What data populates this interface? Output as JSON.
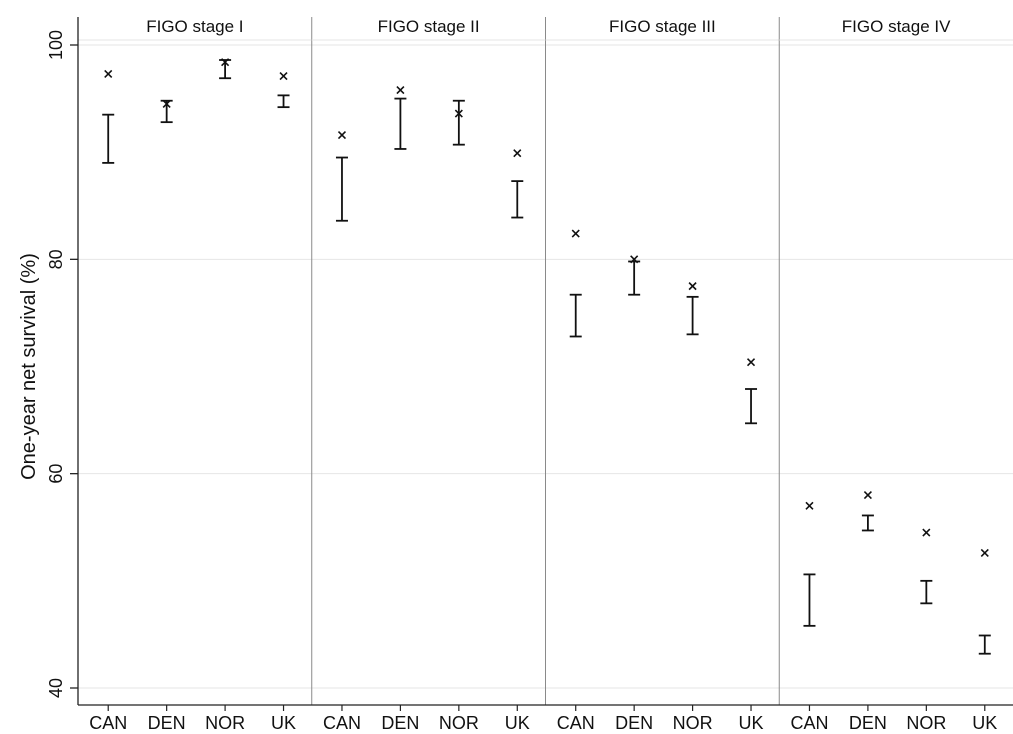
{
  "chart_data": {
    "type": "errorbar",
    "ylabel": "One-year net survival (%)",
    "xlabel": "",
    "ylim": [
      40,
      100
    ],
    "yticks": [
      40,
      60,
      80,
      100
    ],
    "grid": true,
    "categories": [
      "CAN",
      "DEN",
      "NOR",
      "UK"
    ],
    "panels": [
      {
        "title": "FIGO stage I",
        "points": [
          {
            "category": "CAN",
            "marker": 97.3,
            "ci_low": 89.0,
            "ci_high": 93.5
          },
          {
            "category": "DEN",
            "marker": 94.5,
            "ci_low": 92.8,
            "ci_high": 94.8
          },
          {
            "category": "NOR",
            "marker": 98.4,
            "ci_low": 96.9,
            "ci_high": 98.6
          },
          {
            "category": "UK",
            "marker": 97.1,
            "ci_low": 94.2,
            "ci_high": 95.3
          }
        ]
      },
      {
        "title": "FIGO stage II",
        "points": [
          {
            "category": "CAN",
            "marker": 91.6,
            "ci_low": 83.6,
            "ci_high": 89.5
          },
          {
            "category": "DEN",
            "marker": 95.8,
            "ci_low": 90.3,
            "ci_high": 95.0
          },
          {
            "category": "NOR",
            "marker": 93.6,
            "ci_low": 90.7,
            "ci_high": 94.8
          },
          {
            "category": "UK",
            "marker": 89.9,
            "ci_low": 83.9,
            "ci_high": 87.3
          }
        ]
      },
      {
        "title": "FIGO stage III",
        "points": [
          {
            "category": "CAN",
            "marker": 82.4,
            "ci_low": 72.8,
            "ci_high": 76.7
          },
          {
            "category": "DEN",
            "marker": 80.0,
            "ci_low": 76.7,
            "ci_high": 79.8
          },
          {
            "category": "NOR",
            "marker": 77.5,
            "ci_low": 73.0,
            "ci_high": 76.5
          },
          {
            "category": "UK",
            "marker": 70.4,
            "ci_low": 64.7,
            "ci_high": 67.9
          }
        ]
      },
      {
        "title": "FIGO stage IV",
        "points": [
          {
            "category": "CAN",
            "marker": 57.0,
            "ci_low": 45.8,
            "ci_high": 50.6
          },
          {
            "category": "DEN",
            "marker": 58.0,
            "ci_low": 54.7,
            "ci_high": 56.1
          },
          {
            "category": "NOR",
            "marker": 54.5,
            "ci_low": 47.9,
            "ci_high": 50.0
          },
          {
            "category": "UK",
            "marker": 52.6,
            "ci_low": 43.2,
            "ci_high": 44.9
          }
        ]
      }
    ]
  }
}
